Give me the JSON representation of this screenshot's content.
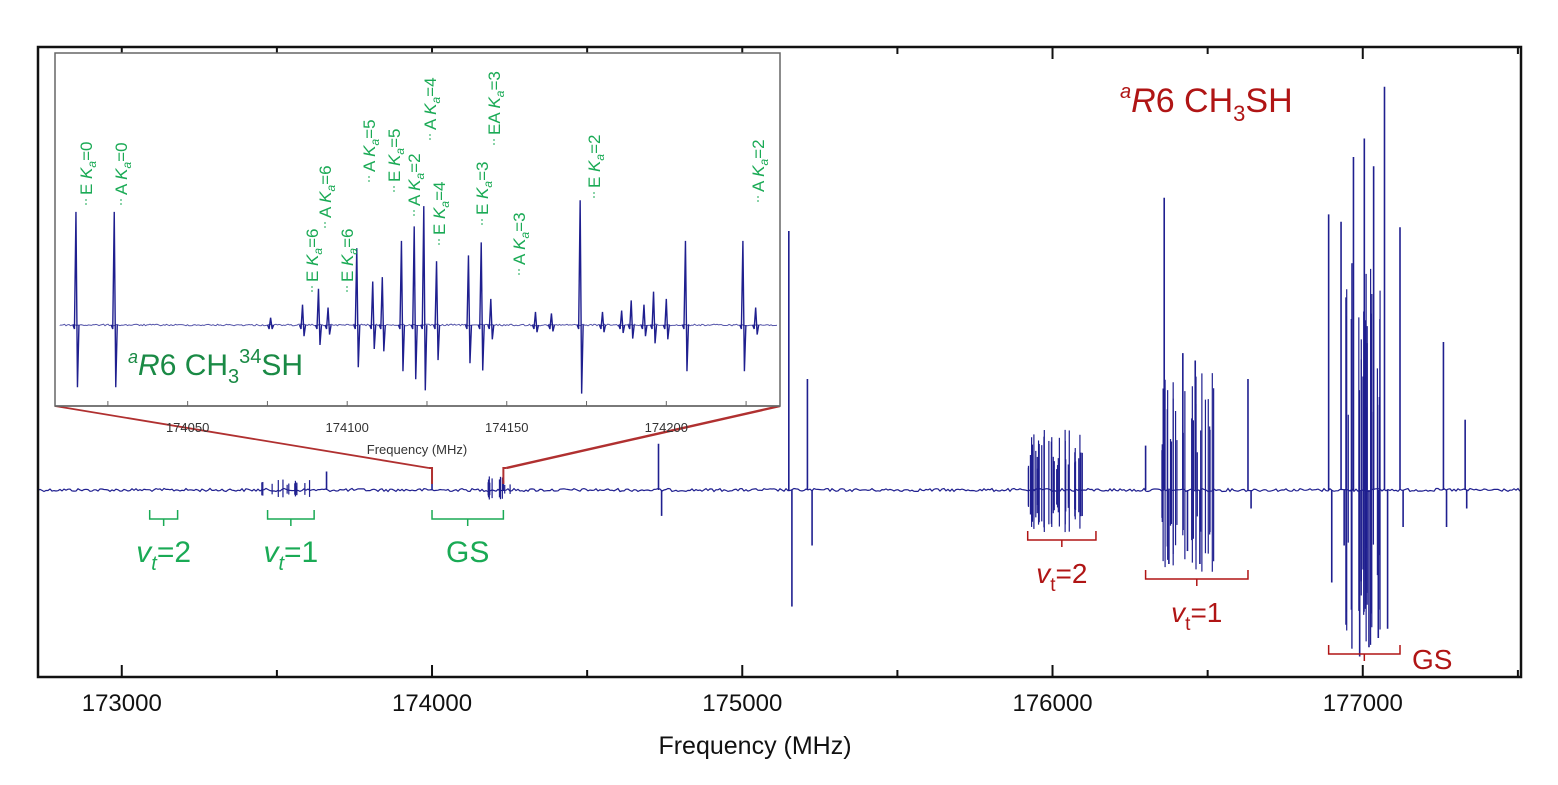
{
  "chart_data": {
    "type": "line",
    "title": "aR6 CH3SH",
    "title_parts": {
      "prefix": "a",
      "italic": "R",
      "main": "6 CH",
      "sub": "3",
      "tail": "SH"
    },
    "xlabel": "Frequency (MHz)",
    "ylabel": "",
    "xlim": [
      172730,
      177510
    ],
    "ylim": [
      -1.0,
      1.0
    ],
    "x_ticks": [
      173000,
      174000,
      175000,
      176000,
      177000
    ],
    "x_tick_labels": [
      "173000",
      "174000",
      "175000",
      "176000",
      "177000"
    ],
    "grid": false,
    "colors": {
      "spectrum": "#1f1f8f",
      "green": "#1aaa55",
      "red": "#b01515",
      "inset_link": "#b03030"
    },
    "main_lines": [
      {
        "x": 173660,
        "y": 0.1
      },
      {
        "x": 174000,
        "y": 0.06
      },
      {
        "x": 174230,
        "y": 0.05
      },
      {
        "x": 174730,
        "y": 0.25
      },
      {
        "x": 174740,
        "y": -0.14
      },
      {
        "x": 175150,
        "y": 1.4
      },
      {
        "x": 175160,
        "y": -0.63
      },
      {
        "x": 175210,
        "y": 0.6
      },
      {
        "x": 175225,
        "y": -0.3
      },
      {
        "x": 176300,
        "y": 0.24
      },
      {
        "x": 176360,
        "y": 1.58
      },
      {
        "x": 176375,
        "y": -0.4
      },
      {
        "x": 176420,
        "y": 0.74
      },
      {
        "x": 176435,
        "y": -0.33
      },
      {
        "x": 176460,
        "y": 0.7
      },
      {
        "x": 176475,
        "y": -0.4
      },
      {
        "x": 176630,
        "y": 0.6
      },
      {
        "x": 176640,
        "y": -0.1
      },
      {
        "x": 176890,
        "y": 1.49
      },
      {
        "x": 176900,
        "y": -0.5
      },
      {
        "x": 176930,
        "y": 1.45
      },
      {
        "x": 176940,
        "y": -0.3
      },
      {
        "x": 176970,
        "y": 1.8
      },
      {
        "x": 176990,
        "y": -0.9
      },
      {
        "x": 177005,
        "y": 1.9
      },
      {
        "x": 177020,
        "y": -0.85
      },
      {
        "x": 177035,
        "y": 1.75
      },
      {
        "x": 177050,
        "y": -0.8
      },
      {
        "x": 177070,
        "y": 2.18
      },
      {
        "x": 177080,
        "y": -0.75
      },
      {
        "x": 177120,
        "y": 1.42
      },
      {
        "x": 177130,
        "y": -0.2
      },
      {
        "x": 177260,
        "y": 0.8
      },
      {
        "x": 177270,
        "y": -0.2
      },
      {
        "x": 177330,
        "y": 0.38
      },
      {
        "x": 177335,
        "y": -0.1
      }
    ],
    "clusters": [
      {
        "start": 174180,
        "end": 174260,
        "count": 10,
        "amp": 0.08
      },
      {
        "start": 175920,
        "end": 176100,
        "count": 40,
        "amp": 0.35
      },
      {
        "start": 176350,
        "end": 176520,
        "count": 30,
        "amp": 0.65
      },
      {
        "start": 176940,
        "end": 177060,
        "count": 30,
        "amp": 1.25
      },
      {
        "start": 173450,
        "end": 173620,
        "count": 14,
        "amp": 0.06
      }
    ],
    "groups_main": [
      {
        "label_base": "v",
        "label_sub": "t",
        "label_tail": "=2",
        "color": "green",
        "start": 173090,
        "end": 173180
      },
      {
        "label_base": "v",
        "label_sub": "t",
        "label_tail": "=1",
        "color": "green",
        "start": 173470,
        "end": 173620
      },
      {
        "label_base": "",
        "label_sub": "",
        "label_tail": "GS",
        "color": "green",
        "start": 174000,
        "end": 174230
      },
      {
        "label_base": "v",
        "label_sub": "t",
        "label_tail": "=2",
        "color": "red",
        "start": 175920,
        "end": 176140
      },
      {
        "label_base": "v",
        "label_sub": "t",
        "label_tail": "=1",
        "color": "red",
        "start": 176300,
        "end": 176630
      },
      {
        "label_base": "",
        "label_sub": "",
        "label_tail": "GS",
        "color": "red",
        "start": 176890,
        "end": 177120
      }
    ],
    "inset": {
      "title_parts": {
        "prefix": "a",
        "italic": "R",
        "main": "6 CH",
        "sub": "3",
        "sup": "34",
        "tail": "SH"
      },
      "xlabel": "Frequency (MHz)",
      "xlim": [
        174010,
        174235
      ],
      "x_ticks": [
        174050,
        174100,
        174150,
        174200
      ],
      "x_tick_labels": [
        "174050",
        "174100",
        "174150",
        "174200"
      ],
      "zoom_range": [
        174000,
        174230
      ],
      "lines": [
        {
          "x": 174015,
          "y": 0.78
        },
        {
          "x": 174027,
          "y": 0.78
        },
        {
          "x": 174076,
          "y": 0.05
        },
        {
          "x": 174086,
          "y": 0.14
        },
        {
          "x": 174091,
          "y": 0.25
        },
        {
          "x": 174094,
          "y": 0.12
        },
        {
          "x": 174103,
          "y": 0.53
        },
        {
          "x": 174108,
          "y": 0.3
        },
        {
          "x": 174111,
          "y": 0.33
        },
        {
          "x": 174117,
          "y": 0.58
        },
        {
          "x": 174121,
          "y": 0.68
        },
        {
          "x": 174124,
          "y": 0.82
        },
        {
          "x": 174128,
          "y": 0.44
        },
        {
          "x": 174138,
          "y": 0.48
        },
        {
          "x": 174142,
          "y": 0.57
        },
        {
          "x": 174145,
          "y": 0.18
        },
        {
          "x": 174159,
          "y": 0.09
        },
        {
          "x": 174164,
          "y": 0.08
        },
        {
          "x": 174173,
          "y": 0.86
        },
        {
          "x": 174180,
          "y": 0.09
        },
        {
          "x": 174186,
          "y": 0.1
        },
        {
          "x": 174189,
          "y": 0.17
        },
        {
          "x": 174193,
          "y": 0.14
        },
        {
          "x": 174196,
          "y": 0.23
        },
        {
          "x": 174200,
          "y": 0.18
        },
        {
          "x": 174206,
          "y": 0.58
        },
        {
          "x": 174224,
          "y": 0.58
        },
        {
          "x": 174228,
          "y": 0.12
        }
      ],
      "labels": [
        {
          "sym": "E",
          "k": "0",
          "x": 174015
        },
        {
          "sym": "A",
          "k": "0",
          "x": 174027
        },
        {
          "sym": "E",
          "k": "6",
          "x": 174086
        },
        {
          "sym": "A",
          "k": "6",
          "x": 174092
        },
        {
          "sym": "E",
          "k": "6",
          "x": 174095
        },
        {
          "sym": "A",
          "k": "5",
          "x": 174103
        },
        {
          "sym": "E",
          "k": "5",
          "x": 174109
        },
        {
          "sym": "A",
          "k": "2",
          "x": 174117
        },
        {
          "sym": "A",
          "k": "4",
          "x": 174123
        },
        {
          "sym": "E",
          "k": "4",
          "x": 174126
        },
        {
          "sym": "E",
          "k": "3",
          "x": 174138
        },
        {
          "sym": "EA",
          "k": "3",
          "x": 174143
        },
        {
          "sym": "A",
          "k": "3",
          "x": 174146
        },
        {
          "sym": "E",
          "k": "2",
          "x": 174173
        },
        {
          "sym": "A",
          "k": "2",
          "x": 174224
        }
      ]
    }
  }
}
